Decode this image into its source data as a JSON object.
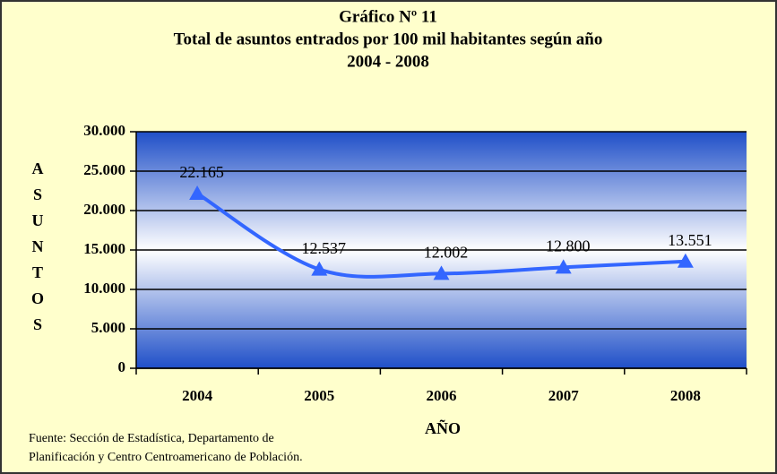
{
  "chart_data": {
    "type": "line",
    "title": [
      "Gráfico Nº 11",
      "Total de asuntos entrados por 100 mil habitantes según año",
      "2004 - 2008"
    ],
    "categories": [
      "2004",
      "2005",
      "2006",
      "2007",
      "2008"
    ],
    "series": [
      {
        "name": "Asuntos",
        "color": "#3366ff",
        "values": [
          22165,
          12537,
          12002,
          12800,
          13551
        ],
        "value_labels": [
          "22.165",
          "12.537",
          "12.002",
          "12.800",
          "13.551"
        ]
      }
    ],
    "ylim": [
      0,
      30000
    ],
    "yticks": [
      {
        "value": 0,
        "label": "0"
      },
      {
        "value": 5000,
        "label": "5.000"
      },
      {
        "value": 10000,
        "label": "10.000"
      },
      {
        "value": 15000,
        "label": "15.000"
      },
      {
        "value": 20000,
        "label": "20.000"
      },
      {
        "value": 25000,
        "label": "25.000"
      },
      {
        "value": 30000,
        "label": "30.000"
      }
    ],
    "ylabel": "ASUNTOS",
    "xlabel": "AÑO",
    "grid": true,
    "source": [
      "Fuente: Sección de Estadística, Departamento de",
      "Planificación  y Centro Centroamericano de Población."
    ]
  }
}
